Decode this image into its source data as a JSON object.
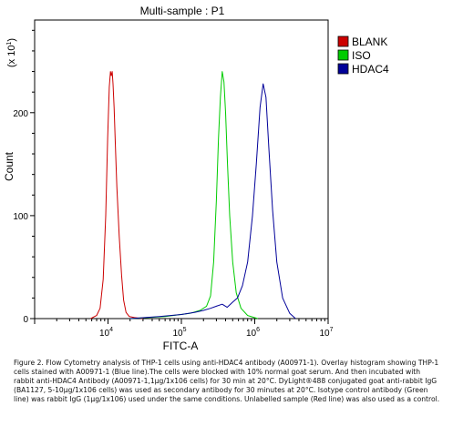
{
  "chart_data": {
    "type": "line",
    "title": "Multi-sample : P1",
    "xlabel": "FITC-A",
    "ylabel": "Count",
    "y_multiplier": "(x 10",
    "y_multiplier_exp": "1",
    "y_multiplier_close": ")",
    "x_scale": "log",
    "xlim": [
      1000,
      10000000
    ],
    "ylim": [
      0,
      290
    ],
    "x_ticks": [
      {
        "value": 10000,
        "base": "10",
        "exp": "4"
      },
      {
        "value": 100000,
        "base": "10",
        "exp": "5"
      },
      {
        "value": 1000000,
        "base": "10",
        "exp": "6"
      },
      {
        "value": 10000000,
        "base": "10",
        "exp": "7"
      }
    ],
    "y_ticks": [
      {
        "value": 0,
        "label": "0"
      },
      {
        "value": 100,
        "label": "100"
      },
      {
        "value": 200,
        "label": "200"
      }
    ],
    "grid": false,
    "legend_position": "top-right",
    "series": [
      {
        "name": "BLANK",
        "color": "#cc0000",
        "x": [
          5800,
          7000,
          7800,
          8600,
          9300,
          9900,
          10400,
          10800,
          11100,
          11400,
          11700,
          12100,
          12600,
          13200,
          14200,
          15300,
          16300,
          17600,
          19500,
          23000,
          30000
        ],
        "y": [
          0,
          3,
          10,
          38,
          100,
          175,
          225,
          240,
          236,
          240,
          228,
          205,
          168,
          128,
          80,
          42,
          18,
          6,
          2,
          1,
          0
        ]
      },
      {
        "name": "ISO",
        "color": "#00cc00",
        "x": [
          20000,
          60000,
          130000,
          180000,
          220000,
          250000,
          275000,
          300000,
          320000,
          340000,
          360000,
          380000,
          400000,
          425000,
          455000,
          500000,
          560000,
          650000,
          800000,
          1100000
        ],
        "y": [
          0,
          2,
          5,
          8,
          12,
          22,
          55,
          115,
          175,
          215,
          240,
          230,
          200,
          150,
          100,
          55,
          25,
          10,
          3,
          0
        ]
      },
      {
        "name": "HDAC4",
        "color": "#000099",
        "x": [
          20000,
          50000,
          100000,
          150000,
          200000,
          250000,
          300000,
          360000,
          420000,
          500000,
          580000,
          680000,
          800000,
          930000,
          1050000,
          1180000,
          1300000,
          1420000,
          1560000,
          1750000,
          2000000,
          2400000,
          3000000,
          3600000
        ],
        "y": [
          0,
          2,
          4,
          6,
          8,
          10,
          12,
          14,
          11,
          16,
          20,
          32,
          55,
          100,
          150,
          205,
          228,
          215,
          165,
          105,
          55,
          20,
          5,
          0
        ]
      }
    ]
  },
  "caption": "Figure 2. Flow Cytometry analysis of THP-1 cells using anti-HDAC4 antibody (A00971-1).  Overlay histogram showing THP-1 cells stained with A00971-1 (Blue line).The cells were blocked with 10% normal goat serum. And then incubated with rabbit anti-HDAC4 Antibody (A00971-1,1μg/1x106 cells) for 30 min at 20°C. DyLight®488 conjugated goat anti-rabbit IgG (BA1127, 5-10μg/1x106 cells) was used as secondary antibody for 30 minutes at 20°C. Isotype control antibody (Green line) was rabbit IgG (1μg/1x106) used under the same conditions. Unlabelled sample (Red line) was also used as a control."
}
